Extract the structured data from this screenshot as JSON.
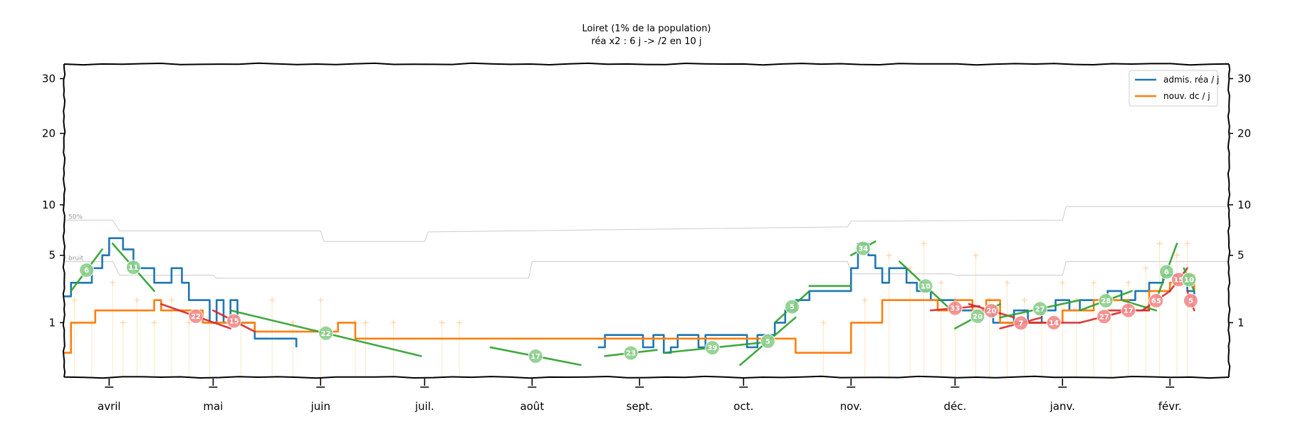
{
  "chart_data": {
    "type": "line",
    "title": "Loiret (1% de la population)",
    "subtitle": "réa x2 : 6 j -> /2 en 10 j",
    "x_labels": [
      "avril",
      "mai",
      "juin",
      "juil.",
      "août",
      "sept.",
      "oct.",
      "nov.",
      "déc.",
      "janv.",
      "févr."
    ],
    "x_start": "2020-03-19",
    "x_end": "2021-02-18",
    "month_starts": [
      "2020-04-01",
      "2020-05-01",
      "2020-06-01",
      "2020-07-01",
      "2020-08-01",
      "2020-09-01",
      "2020-10-01",
      "2020-11-01",
      "2020-12-01",
      "2021-01-01",
      "2021-02-01"
    ],
    "y_scale": "sqrt",
    "ylim": [
      0,
      33
    ],
    "yticks_left": [
      "1",
      "5",
      "10",
      "20",
      "30"
    ],
    "yticks_right": [
      "1",
      "5",
      "10",
      "20",
      "30"
    ],
    "ytick_values": [
      1,
      5,
      10,
      20,
      30
    ],
    "grid": false,
    "legend": {
      "position": "top-right",
      "entries": [
        "admis. réa / j",
        "nouv. dc / j"
      ]
    },
    "ref_labels": [
      "50%",
      "bruit"
    ],
    "series": [
      {
        "name": "admis. réa / j",
        "color": "#1f77b4",
        "points": [
          [
            "2020-03-19",
            2.2
          ],
          [
            "2020-03-21",
            3
          ],
          [
            "2020-03-24",
            3
          ],
          [
            "2020-03-27",
            4
          ],
          [
            "2020-03-30",
            5
          ],
          [
            "2020-04-01",
            6.5
          ],
          [
            "2020-04-05",
            5.5
          ],
          [
            "2020-04-08",
            4
          ],
          [
            "2020-04-12",
            4
          ],
          [
            "2020-04-14",
            3
          ],
          [
            "2020-04-17",
            3
          ],
          [
            "2020-04-19",
            4
          ],
          [
            "2020-04-22",
            3
          ],
          [
            "2020-04-24",
            2
          ],
          [
            "2020-04-28",
            2
          ],
          [
            "2020-04-30",
            1
          ],
          [
            "2020-05-02",
            2
          ],
          [
            "2020-05-04",
            1
          ],
          [
            "2020-05-06",
            2
          ],
          [
            "2020-05-08",
            1
          ],
          [
            "2020-05-10",
            1
          ],
          [
            "2020-05-13",
            0.5
          ],
          [
            "2020-05-20",
            0.5
          ],
          [
            "2020-05-25",
            0.3
          ]
        ]
      },
      {
        "name": "",
        "color": "#1f77b4",
        "points": [
          [
            "2020-08-20",
            0.3
          ],
          [
            "2020-08-22",
            0.6
          ],
          [
            "2020-08-30",
            0.6
          ],
          [
            "2020-09-02",
            0.3
          ],
          [
            "2020-09-05",
            0.6
          ],
          [
            "2020-09-08",
            0.2
          ],
          [
            "2020-09-10",
            0.3
          ],
          [
            "2020-09-12",
            0.6
          ],
          [
            "2020-09-16",
            0.6
          ],
          [
            "2020-09-18",
            0.3
          ],
          [
            "2020-09-20",
            0.6
          ],
          [
            "2020-09-30",
            0.6
          ],
          [
            "2020-10-02",
            0.3
          ],
          [
            "2020-10-05",
            0.6
          ],
          [
            "2020-10-10",
            1
          ],
          [
            "2020-10-13",
            1.5
          ],
          [
            "2020-10-16",
            2
          ],
          [
            "2020-10-20",
            2.5
          ],
          [
            "2020-10-30",
            2.5
          ],
          [
            "2020-11-01",
            4
          ],
          [
            "2020-11-03",
            6
          ],
          [
            "2020-11-06",
            5
          ],
          [
            "2020-11-08",
            4
          ],
          [
            "2020-11-10",
            3
          ],
          [
            "2020-11-12",
            4
          ],
          [
            "2020-11-15",
            4
          ],
          [
            "2020-11-17",
            3
          ],
          [
            "2020-11-20",
            2.5
          ],
          [
            "2020-11-24",
            2
          ],
          [
            "2020-11-27",
            2
          ],
          [
            "2020-12-01",
            1.5
          ],
          [
            "2020-12-05",
            1.5
          ],
          [
            "2020-12-12",
            1
          ],
          [
            "2020-12-18",
            1.5
          ],
          [
            "2020-12-22",
            1
          ],
          [
            "2020-12-26",
            1.5
          ],
          [
            "2020-12-30",
            2
          ],
          [
            "2021-01-03",
            1.5
          ],
          [
            "2021-01-06",
            2
          ],
          [
            "2021-01-10",
            2
          ],
          [
            "2021-01-14",
            2.5
          ],
          [
            "2021-01-18",
            2
          ],
          [
            "2021-01-22",
            2.5
          ],
          [
            "2021-01-26",
            3
          ],
          [
            "2021-01-30",
            3.5
          ],
          [
            "2021-02-03",
            3
          ],
          [
            "2021-02-06",
            2.5
          ],
          [
            "2021-02-08",
            2
          ]
        ]
      },
      {
        "name": "nouv. dc / j",
        "color": "#ff7f0e",
        "points": [
          [
            "2020-03-19",
            0.2
          ],
          [
            "2020-03-21",
            1
          ],
          [
            "2020-03-26",
            1
          ],
          [
            "2020-03-28",
            1.5
          ],
          [
            "2020-04-04",
            1.5
          ],
          [
            "2020-04-12",
            1.5
          ],
          [
            "2020-04-14",
            2
          ],
          [
            "2020-04-16",
            1.5
          ],
          [
            "2020-04-22",
            1.5
          ],
          [
            "2020-04-28",
            1
          ],
          [
            "2020-05-06",
            1
          ],
          [
            "2020-05-13",
            0.7
          ],
          [
            "2020-06-04",
            0.7
          ],
          [
            "2020-06-06",
            1
          ],
          [
            "2020-06-09",
            1
          ],
          [
            "2020-06-11",
            0.5
          ],
          [
            "2020-06-14",
            0.5
          ],
          [
            "2020-10-10",
            0.5
          ],
          [
            "2020-10-16",
            0.2
          ],
          [
            "2020-10-28",
            0.2
          ],
          [
            "2020-11-01",
            1
          ],
          [
            "2020-11-08",
            1
          ],
          [
            "2020-11-10",
            2
          ],
          [
            "2020-11-18",
            2
          ],
          [
            "2020-11-26",
            1.5
          ],
          [
            "2020-12-01",
            2
          ],
          [
            "2020-12-06",
            1.5
          ],
          [
            "2020-12-10",
            2
          ],
          [
            "2020-12-14",
            1
          ],
          [
            "2020-12-22",
            1
          ],
          [
            "2021-01-01",
            1.5
          ],
          [
            "2021-01-10",
            2
          ],
          [
            "2021-01-20",
            1.5
          ],
          [
            "2021-01-26",
            2.5
          ],
          [
            "2021-02-01",
            3
          ],
          [
            "2021-02-05",
            3.5
          ],
          [
            "2021-02-08",
            2.5
          ]
        ]
      }
    ],
    "trend_segments": [
      {
        "color": "#2ca02c",
        "start": [
          "2020-03-21",
          2.5
        ],
        "end": [
          "2020-03-30",
          5.5
        ],
        "label": "6"
      },
      {
        "color": "#2ca02c",
        "start": [
          "2020-04-02",
          6
        ],
        "end": [
          "2020-04-14",
          2.5
        ],
        "label": "11"
      },
      {
        "color": "#d62728",
        "start": [
          "2020-04-16",
          1.8
        ],
        "end": [
          "2020-05-06",
          0.8
        ],
        "label": "22"
      },
      {
        "color": "#d62728",
        "start": [
          "2020-05-01",
          1.5
        ],
        "end": [
          "2020-05-13",
          0.7
        ],
        "label": "15"
      },
      {
        "color": "#2ca02c",
        "start": [
          "2020-05-06",
          1.5
        ],
        "end": [
          "2020-06-30",
          0.15
        ],
        "label": "22"
      },
      {
        "color": "#2ca02c",
        "start": [
          "2020-07-20",
          0.3
        ],
        "end": [
          "2020-08-15",
          0.05
        ],
        "label": "17"
      },
      {
        "color": "#2ca02c",
        "start": [
          "2020-08-22",
          0.15
        ],
        "end": [
          "2020-09-06",
          0.25
        ],
        "label": "23"
      },
      {
        "color": "#2ca02c",
        "start": [
          "2020-09-08",
          0.2
        ],
        "end": [
          "2020-10-06",
          0.4
        ],
        "label": "39"
      },
      {
        "color": "#2ca02c",
        "start": [
          "2020-09-30",
          0.05
        ],
        "end": [
          "2020-10-16",
          1.2
        ],
        "label": "5"
      },
      {
        "color": "#2ca02c",
        "start": [
          "2020-10-10",
          1
        ],
        "end": [
          "2020-10-20",
          2.5
        ],
        "label": "5"
      },
      {
        "color": "#2ca02c",
        "start": [
          "2020-10-20",
          2.8
        ],
        "end": [
          "2020-11-01",
          2.8
        ],
        "label": ""
      },
      {
        "color": "#2ca02c",
        "start": [
          "2020-11-01",
          5
        ],
        "end": [
          "2020-11-08",
          6.2
        ],
        "label": "34"
      },
      {
        "color": "#2ca02c",
        "start": [
          "2020-11-15",
          4.5
        ],
        "end": [
          "2020-11-30",
          1.5
        ],
        "label": "10"
      },
      {
        "color": "#d62728",
        "start": [
          "2020-11-24",
          1.5
        ],
        "end": [
          "2020-12-08",
          1.7
        ],
        "label": "33"
      },
      {
        "color": "#2ca02c",
        "start": [
          "2020-12-01",
          0.8
        ],
        "end": [
          "2020-12-14",
          1.8
        ],
        "label": "20"
      },
      {
        "color": "#d62728",
        "start": [
          "2020-12-05",
          1.8
        ],
        "end": [
          "2020-12-18",
          1.2
        ],
        "label": "20"
      },
      {
        "color": "#d62728",
        "start": [
          "2020-12-14",
          0.8
        ],
        "end": [
          "2020-12-26",
          1.2
        ],
        "label": "7"
      },
      {
        "color": "#2ca02c",
        "start": [
          "2020-12-14",
          1.2
        ],
        "end": [
          "2021-01-06",
          2
        ],
        "label": "27"
      },
      {
        "color": "#d62728",
        "start": [
          "2020-12-22",
          1
        ],
        "end": [
          "2021-01-06",
          1
        ],
        "label": "14"
      },
      {
        "color": "#2ca02c",
        "start": [
          "2021-01-06",
          1.5
        ],
        "end": [
          "2021-01-21",
          2.5
        ],
        "label": "28"
      },
      {
        "color": "#d62728",
        "start": [
          "2021-01-06",
          1
        ],
        "end": [
          "2021-01-20",
          1.5
        ],
        "label": "27"
      },
      {
        "color": "#d62728",
        "start": [
          "2021-01-14",
          1.5
        ],
        "end": [
          "2021-01-26",
          1.5
        ],
        "label": "17"
      },
      {
        "color": "#2ca02c",
        "start": [
          "2021-01-18",
          2
        ],
        "end": [
          "2021-01-28",
          1.5
        ],
        "label": ""
      },
      {
        "color": "#d62728",
        "start": [
          "2021-01-24",
          1.5
        ],
        "end": [
          "2021-02-01",
          2.5
        ],
        "label": "65"
      },
      {
        "color": "#2ca02c",
        "start": [
          "2021-01-28",
          2
        ],
        "end": [
          "2021-02-03",
          6
        ],
        "label": "6"
      },
      {
        "color": "#d62728",
        "start": [
          "2021-02-01",
          2.5
        ],
        "end": [
          "2021-02-06",
          4
        ],
        "label": "15"
      },
      {
        "color": "#2ca02c",
        "start": [
          "2021-02-05",
          4
        ],
        "end": [
          "2021-02-08",
          2.5
        ],
        "label": "10"
      },
      {
        "color": "#d62728",
        "start": [
          "2021-02-06",
          2.5
        ],
        "end": [
          "2021-02-08",
          1.5
        ],
        "label": "5"
      }
    ],
    "reference_lines": [
      {
        "name": "50%",
        "color": "#cccccc",
        "points": [
          [
            "2020-03-19",
            8.3
          ],
          [
            "2020-04-02",
            8.3
          ],
          [
            "2020-04-04",
            7.2
          ],
          [
            "2020-06-01",
            7.2
          ],
          [
            "2020-06-02",
            6.2
          ],
          [
            "2020-07-01",
            6.2
          ],
          [
            "2020-07-02",
            7.1
          ],
          [
            "2020-10-31",
            7.6
          ],
          [
            "2020-11-01",
            8.2
          ],
          [
            "2021-01-01",
            8.3
          ],
          [
            "2021-01-02",
            9.8
          ],
          [
            "2021-02-18",
            9.8
          ]
        ]
      },
      {
        "name": "bruit",
        "color": "#cccccc",
        "points": [
          [
            "2020-03-19",
            4.5
          ],
          [
            "2020-04-02",
            4.5
          ],
          [
            "2020-04-04",
            3.5
          ],
          [
            "2020-05-01",
            3.5
          ],
          [
            "2020-05-02",
            3.3
          ],
          [
            "2020-07-31",
            3.3
          ],
          [
            "2020-08-01",
            4.5
          ],
          [
            "2020-10-31",
            4.5
          ],
          [
            "2020-11-01",
            3.6
          ],
          [
            "2020-11-30",
            3.6
          ],
          [
            "2020-12-01",
            3.5
          ],
          [
            "2021-01-01",
            3.5
          ],
          [
            "2021-01-02",
            4.5
          ],
          [
            "2021-02-18",
            4.5
          ]
        ]
      }
    ],
    "daily_deaths_color": "#ffcc88",
    "daily_deaths": [
      [
        "2020-03-22",
        2
      ],
      [
        "2020-03-27",
        1
      ],
      [
        "2020-04-02",
        3
      ],
      [
        "2020-04-05",
        1
      ],
      [
        "2020-04-09",
        2
      ],
      [
        "2020-04-14",
        1
      ],
      [
        "2020-04-19",
        2
      ],
      [
        "2020-04-24",
        1
      ],
      [
        "2020-04-30",
        1
      ],
      [
        "2020-05-09",
        1
      ],
      [
        "2020-05-18",
        2
      ],
      [
        "2020-05-24",
        1
      ],
      [
        "2020-06-01",
        2
      ],
      [
        "2020-06-11",
        1
      ],
      [
        "2020-06-14",
        1
      ],
      [
        "2020-06-22",
        1
      ],
      [
        "2020-07-06",
        1
      ],
      [
        "2020-07-11",
        1
      ],
      [
        "2020-10-24",
        1
      ],
      [
        "2020-11-05",
        2
      ],
      [
        "2020-11-12",
        5
      ],
      [
        "2020-11-18",
        4
      ],
      [
        "2020-11-22",
        6
      ],
      [
        "2020-11-27",
        3
      ],
      [
        "2020-12-01",
        2
      ],
      [
        "2020-12-07",
        5
      ],
      [
        "2020-12-11",
        2
      ],
      [
        "2020-12-16",
        3
      ],
      [
        "2020-12-21",
        2
      ],
      [
        "2020-12-26",
        1
      ],
      [
        "2021-01-01",
        3
      ],
      [
        "2021-01-05",
        2
      ],
      [
        "2021-01-10",
        3
      ],
      [
        "2021-01-15",
        2
      ],
      [
        "2021-01-20",
        3
      ],
      [
        "2021-01-25",
        4
      ],
      [
        "2021-01-29",
        6
      ],
      [
        "2021-02-03",
        5
      ],
      [
        "2021-02-06",
        6
      ]
    ]
  }
}
